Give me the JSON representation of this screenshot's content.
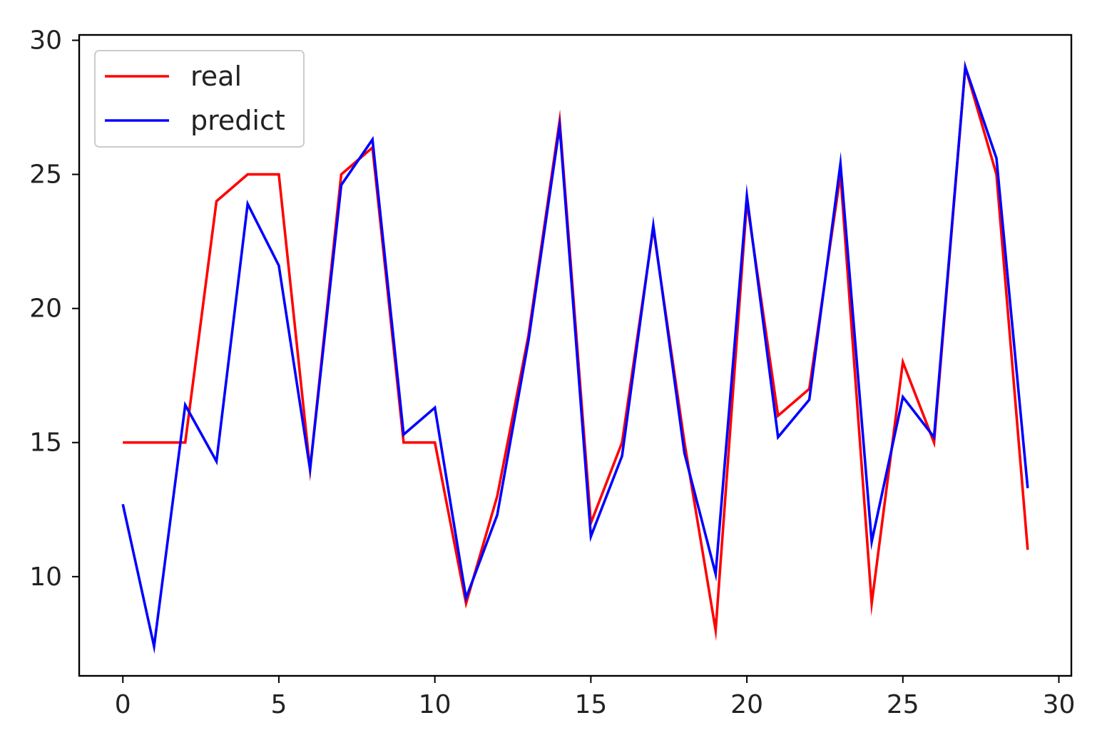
{
  "chart_data": {
    "type": "line",
    "title": "",
    "xlabel": "",
    "ylabel": "",
    "xlim": [
      -1.4,
      30.4
    ],
    "ylim": [
      6.3,
      30.2
    ],
    "xticks": [
      0,
      5,
      10,
      15,
      20,
      25,
      30
    ],
    "yticks": [
      10,
      15,
      20,
      25,
      30
    ],
    "grid": false,
    "legend_position": "upper-left",
    "x": [
      0,
      1,
      2,
      3,
      4,
      5,
      6,
      7,
      8,
      9,
      10,
      11,
      12,
      13,
      14,
      15,
      16,
      17,
      18,
      19,
      20,
      21,
      22,
      23,
      24,
      25,
      26,
      27,
      28,
      29
    ],
    "series": [
      {
        "name": "real",
        "color": "#ff0000",
        "values": [
          15,
          15,
          15,
          24,
          25,
          25,
          14,
          25,
          26,
          15,
          15,
          9,
          13,
          19,
          27,
          12,
          15,
          23,
          15,
          8,
          24,
          16,
          17,
          25,
          9,
          18,
          15,
          29,
          25,
          11
        ]
      },
      {
        "name": "predict",
        "color": "#0000ff",
        "values": [
          12.7,
          7.4,
          16.4,
          14.3,
          23.9,
          21.6,
          14.0,
          24.6,
          26.3,
          15.3,
          16.3,
          9.2,
          12.3,
          18.8,
          26.8,
          11.5,
          14.5,
          23.1,
          14.6,
          10.1,
          24.2,
          15.2,
          16.6,
          25.4,
          11.3,
          16.7,
          15.2,
          29.0,
          25.6,
          13.3
        ]
      }
    ]
  }
}
